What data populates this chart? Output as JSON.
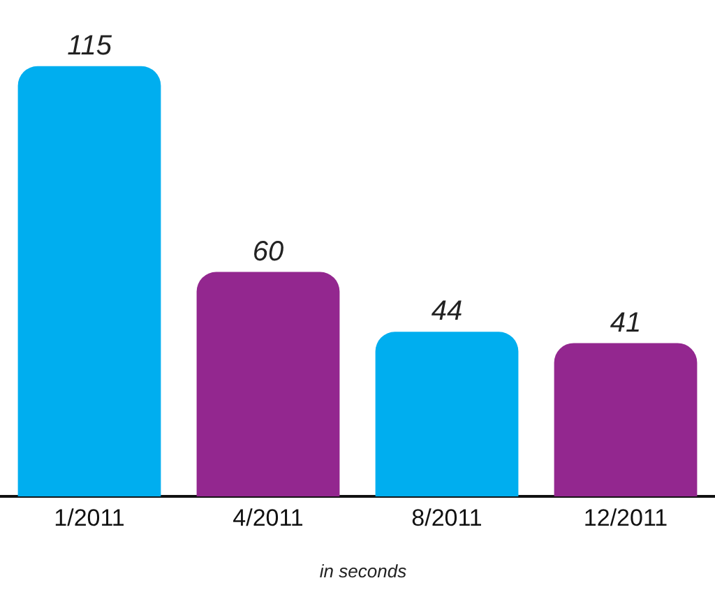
{
  "chart_data": {
    "type": "bar",
    "categories": [
      "1/2011",
      "4/2011",
      "8/2011",
      "12/2011"
    ],
    "values": [
      115,
      60,
      44,
      41
    ],
    "colors": [
      "#00aeef",
      "#93278f",
      "#00aeef",
      "#93278f"
    ],
    "data_labels": true,
    "grid": false,
    "legend": false,
    "tick_labels": "x",
    "annotations": [
      "in seconds"
    ]
  }
}
